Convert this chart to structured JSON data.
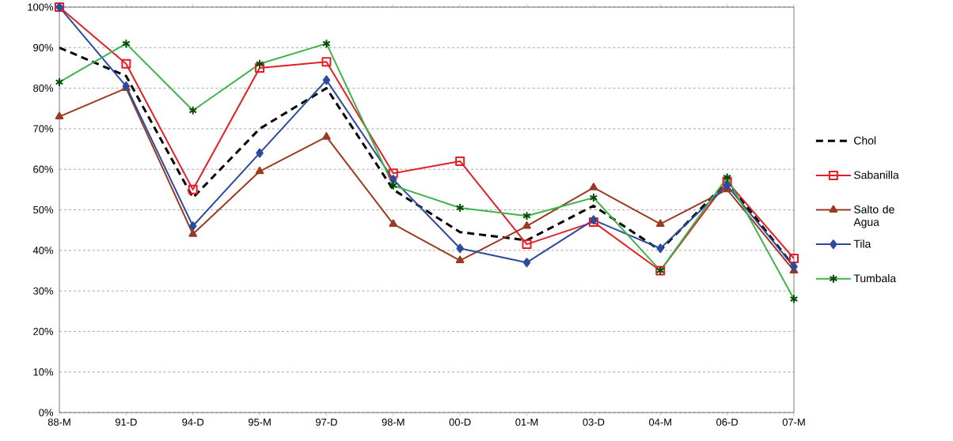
{
  "chart_data": {
    "type": "line",
    "categories": [
      "88-M",
      "91-D",
      "94-D",
      "95-M",
      "97-D",
      "98-M",
      "00-D",
      "01-M",
      "03-D",
      "04-M",
      "06-D",
      "07-M"
    ],
    "series": [
      {
        "name": "Chol",
        "color": "#000000",
        "line_style": "dashed",
        "marker": "none",
        "values": [
          90,
          83,
          53,
          70,
          80,
          55,
          44.5,
          42.5,
          51,
          40,
          57,
          36
        ]
      },
      {
        "name": "Sabanilla",
        "color": "#e41e26",
        "line_style": "solid",
        "marker": "square",
        "values": [
          100,
          86,
          55,
          85,
          86.5,
          59,
          62,
          41.5,
          47,
          35,
          57,
          38
        ]
      },
      {
        "name": "Salto de Agua",
        "color": "#9a3b1f",
        "line_style": "solid",
        "marker": "triangle",
        "values": [
          73,
          80,
          44,
          59.5,
          68,
          46.5,
          37.5,
          46,
          55.5,
          46.5,
          55,
          35
        ]
      },
      {
        "name": "Tila",
        "color": "#2e4a9e",
        "line_style": "solid",
        "marker": "diamond",
        "values": [
          100,
          80.5,
          46,
          64,
          82,
          57.5,
          40.5,
          37,
          47.5,
          40.5,
          56,
          36
        ]
      },
      {
        "name": "Tumbala",
        "color": "#3cb449",
        "line_style": "solid",
        "marker": "cross",
        "values": [
          81.5,
          91,
          74.5,
          86,
          91,
          56,
          50.5,
          48.5,
          53,
          35,
          58,
          28
        ]
      }
    ],
    "ylim": [
      0,
      100
    ],
    "yticks": [
      {
        "value": 0,
        "label": "0%"
      },
      {
        "value": 10,
        "label": "10%"
      },
      {
        "value": 20,
        "label": "20%"
      },
      {
        "value": 30,
        "label": "30%"
      },
      {
        "value": 40,
        "label": "40%"
      },
      {
        "value": 50,
        "label": "50%"
      },
      {
        "value": 60,
        "label": "60%"
      },
      {
        "value": 70,
        "label": "70%"
      },
      {
        "value": 80,
        "label": "80%"
      },
      {
        "value": 90,
        "label": "90%"
      },
      {
        "value": 100,
        "label": "100%"
      }
    ],
    "grid": "y",
    "legend": "right"
  }
}
